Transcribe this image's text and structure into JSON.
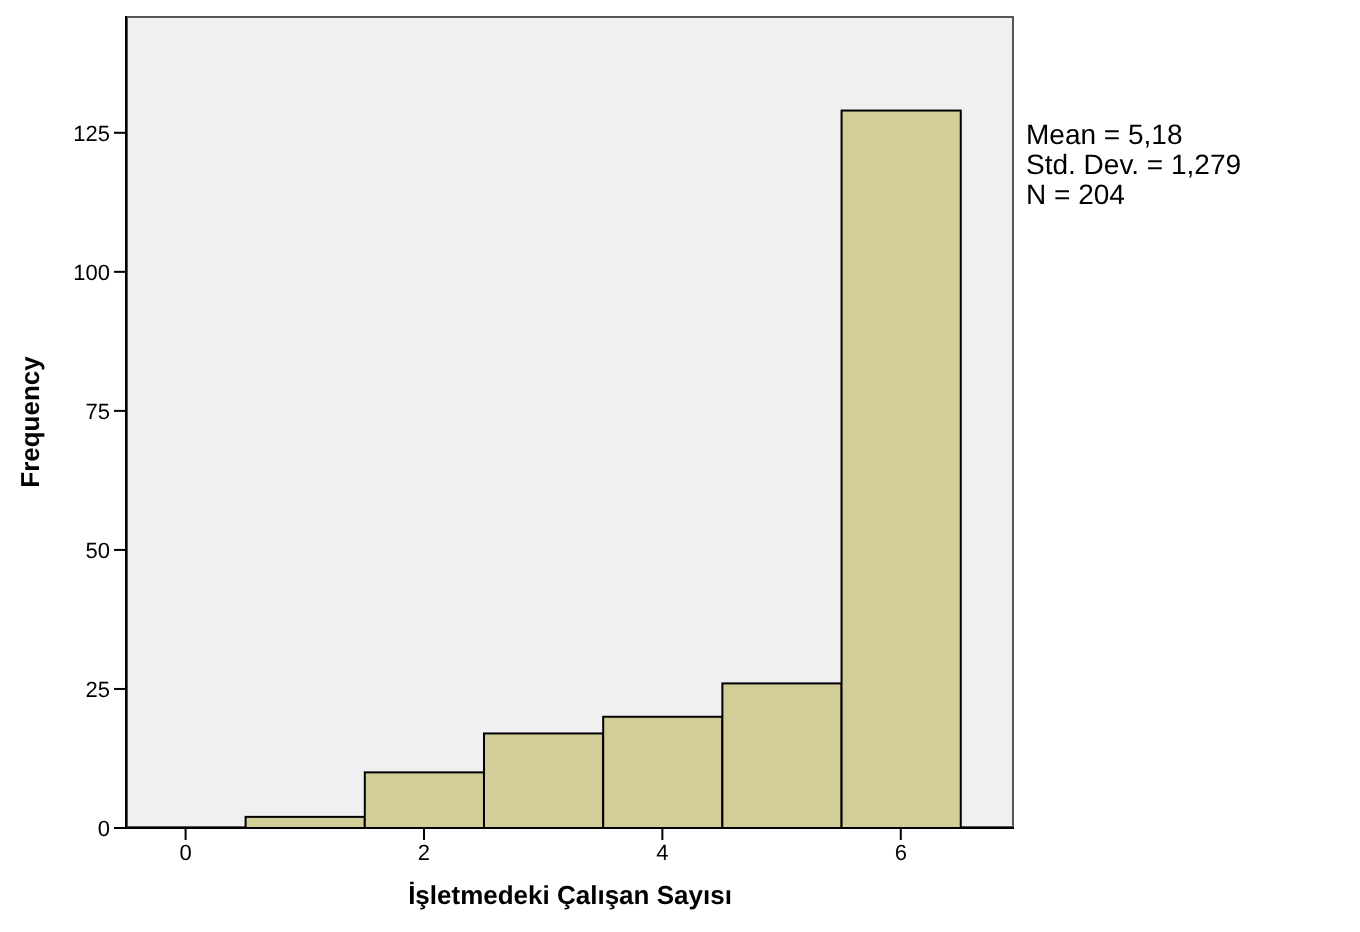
{
  "chart_data": {
    "type": "histogram",
    "xlabel": "İşletmedeki Çalışan Sayısı",
    "ylabel": "Frequency",
    "bins": [
      0.5,
      1.5,
      2.5,
      3.5,
      4.5,
      5.5,
      6.5
    ],
    "values": [
      2,
      10,
      17,
      20,
      26,
      129
    ],
    "color": "#d3ce97",
    "xlim": [
      -0.5,
      6.95
    ],
    "xticks": [
      0,
      2,
      4,
      6
    ],
    "ylim": [
      0,
      146
    ],
    "yticks": [
      0,
      25,
      50,
      75,
      100,
      125
    ],
    "annotations": [
      "Mean = 5,18",
      "Std. Dev. = 1,279",
      "N = 204"
    ]
  }
}
